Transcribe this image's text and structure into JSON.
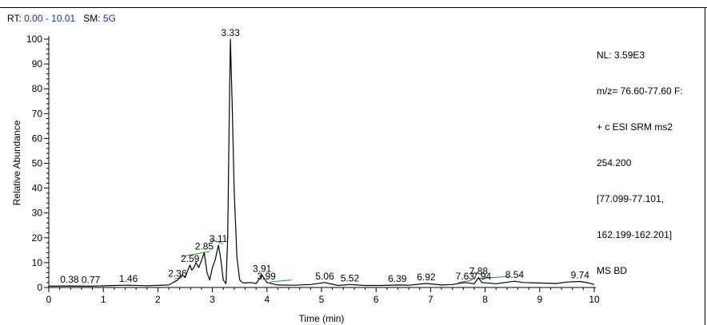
{
  "header": {
    "rt_label": "RT:",
    "rt_value": "0.00 - 10.01",
    "sm_label": "SM:",
    "sm_value": "5G"
  },
  "info_lines": [
    "NL: 3.59E3",
    "m/z= 76.60-77.60 F:",
    "+ c ESI SRM ms2",
    "254.200",
    "[77.099-77.101,",
    "162.199-162.201]",
    "MS BD"
  ],
  "chart_data": {
    "type": "line",
    "xlabel": "Time (min)",
    "ylabel": "Relative Abundance",
    "xlim": [
      0,
      10
    ],
    "ylim": [
      0,
      100
    ],
    "x_ticks": [
      "0",
      "1",
      "2",
      "3",
      "4",
      "5",
      "6",
      "7",
      "8",
      "9",
      "10"
    ],
    "y_ticks": [
      "0",
      "10",
      "20",
      "30",
      "40",
      "50",
      "60",
      "70",
      "80",
      "90",
      "100"
    ],
    "grid": false,
    "line_color": "#000000",
    "baseline_color": "#2e8b2e",
    "series": [
      {
        "x": [
          0.0,
          0.38,
          0.77,
          1.2,
          1.46,
          1.8,
          2.2,
          2.36,
          2.45,
          2.5,
          2.55,
          2.59,
          2.62,
          2.66,
          2.7,
          2.75,
          2.8,
          2.85,
          2.9,
          2.95,
          3.0,
          3.05,
          3.11,
          3.15,
          3.2,
          3.25,
          3.28,
          3.31,
          3.33,
          3.36,
          3.4,
          3.45,
          3.5,
          3.55,
          3.6,
          3.7,
          3.8,
          3.91,
          4.0,
          4.2,
          4.5,
          4.8,
          5.06,
          5.3,
          5.52,
          5.8,
          6.1,
          6.39,
          6.6,
          6.92,
          7.2,
          7.4,
          7.63,
          7.8,
          7.88,
          7.94,
          8.2,
          8.54,
          8.7,
          9.0,
          9.3,
          9.5,
          9.74,
          9.9,
          10.0
        ],
        "y": [
          0.5,
          0.6,
          0.5,
          0.8,
          0.9,
          0.7,
          1.0,
          3.0,
          5.0,
          4.0,
          7.0,
          9.0,
          7.0,
          8.0,
          10.0,
          8.0,
          11.0,
          14.0,
          6.0,
          3.0,
          8.0,
          11.0,
          17.0,
          12.0,
          3.0,
          1.5,
          20.0,
          70.0,
          100.0,
          75.0,
          38.0,
          12.0,
          3.0,
          2.0,
          1.8,
          2.0,
          1.6,
          5.0,
          2.0,
          1.0,
          0.9,
          1.2,
          2.0,
          0.8,
          1.2,
          0.8,
          0.8,
          1.0,
          0.9,
          1.6,
          1.0,
          1.2,
          2.0,
          1.5,
          4.0,
          2.0,
          1.5,
          2.5,
          2.0,
          1.8,
          1.6,
          2.2,
          2.4,
          1.8,
          1.2
        ]
      }
    ],
    "peak_labels": [
      {
        "x": 0.38,
        "y": 0.6,
        "label": "0.38"
      },
      {
        "x": 0.77,
        "y": 0.5,
        "label": "0.77"
      },
      {
        "x": 1.46,
        "y": 0.9,
        "label": "1.46"
      },
      {
        "x": 2.36,
        "y": 3.0,
        "label": "2.36"
      },
      {
        "x": 2.59,
        "y": 9.0,
        "label": "2.59"
      },
      {
        "x": 2.85,
        "y": 14.0,
        "label": "2.85"
      },
      {
        "x": 3.11,
        "y": 17.0,
        "label": "3.11"
      },
      {
        "x": 3.33,
        "y": 100.0,
        "label": "3.33"
      },
      {
        "x": 3.91,
        "y": 5.0,
        "label": "3.91"
      },
      {
        "x": 3.99,
        "y": 2.0,
        "label": "3.99"
      },
      {
        "x": 5.06,
        "y": 2.0,
        "label": "5.06"
      },
      {
        "x": 5.52,
        "y": 1.2,
        "label": "5.52"
      },
      {
        "x": 6.39,
        "y": 1.0,
        "label": "6.39"
      },
      {
        "x": 6.92,
        "y": 1.6,
        "label": "6.92"
      },
      {
        "x": 7.63,
        "y": 2.0,
        "label": "7.63"
      },
      {
        "x": 7.88,
        "y": 4.0,
        "label": "7.88"
      },
      {
        "x": 7.94,
        "y": 2.0,
        "label": "7.94"
      },
      {
        "x": 8.54,
        "y": 2.5,
        "label": "8.54"
      },
      {
        "x": 9.74,
        "y": 2.4,
        "label": "9.74"
      }
    ],
    "baselines": [
      {
        "x1": 2.3,
        "y1": 3.5,
        "x2": 2.45,
        "y2": 4.0
      },
      {
        "x1": 2.45,
        "y1": 12.5,
        "x2": 2.95,
        "y2": 14.5
      },
      {
        "x1": 2.95,
        "y1": 19.5,
        "x2": 3.2,
        "y2": 17.5
      },
      {
        "x1": 4.05,
        "y1": 2.2,
        "x2": 4.45,
        "y2": 3.0
      },
      {
        "x1": 7.5,
        "y1": 2.0,
        "x2": 7.75,
        "y2": 2.8
      },
      {
        "x1": 7.85,
        "y1": 3.5,
        "x2": 8.45,
        "y2": 4.5
      }
    ]
  }
}
